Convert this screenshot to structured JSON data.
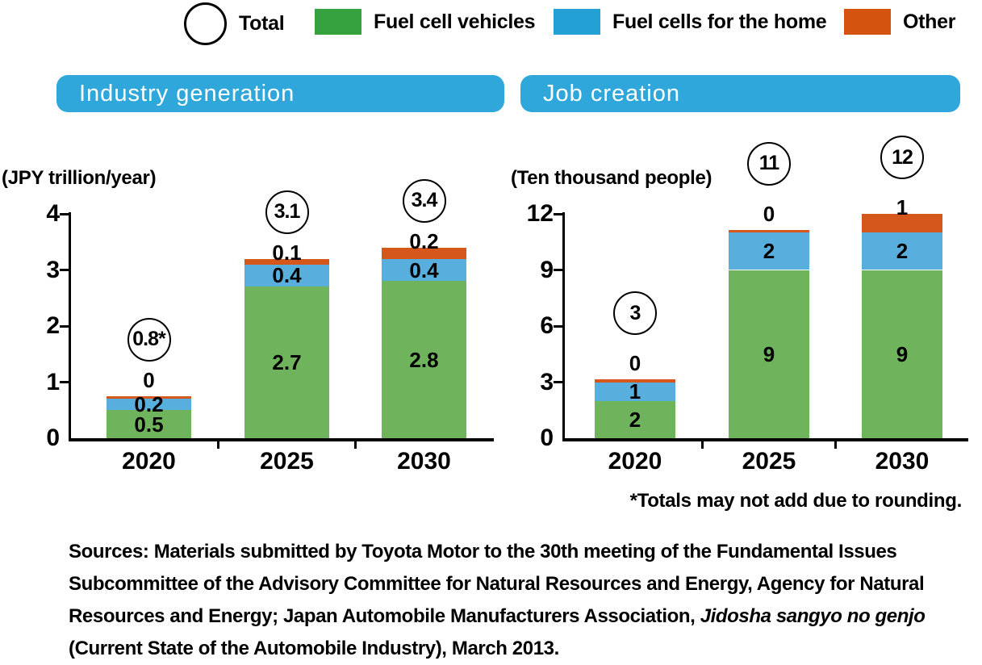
{
  "legend": {
    "total_label": "Total",
    "items": [
      {
        "label": "Fuel cell vehicles",
        "color": "#35A23F"
      },
      {
        "label": "Fuel cells for the home",
        "color": "#23A0D4"
      },
      {
        "label": "Other",
        "color": "#D4540F"
      }
    ]
  },
  "colors": {
    "bar_green": "#6FB45C",
    "bar_blue": "#58AEDC",
    "bar_orange": "#D5571B",
    "header_blue": "#2FA7DA",
    "axis_black": "#000000"
  },
  "chart_data": [
    {
      "type": "bar",
      "stacked": true,
      "title": "Industry generation",
      "unit_label": "(JPY trillion/year)",
      "categories": [
        "2020",
        "2025",
        "2030"
      ],
      "series": [
        {
          "name": "Fuel cell vehicles",
          "values": [
            0.5,
            2.7,
            2.8
          ]
        },
        {
          "name": "Fuel cells for the home",
          "values": [
            0.2,
            0.4,
            0.4
          ]
        },
        {
          "name": "Other",
          "values": [
            0,
            0.1,
            0.2
          ]
        }
      ],
      "totals": [
        "0.8*",
        "3.1",
        "3.4"
      ],
      "ylim": [
        0,
        4
      ],
      "yticks": [
        0,
        1,
        2,
        3,
        4
      ],
      "grid": false,
      "legend_position": "top"
    },
    {
      "type": "bar",
      "stacked": true,
      "title": "Job creation",
      "unit_label": "(Ten thousand people)",
      "categories": [
        "2020",
        "2025",
        "2030"
      ],
      "series": [
        {
          "name": "Fuel cell vehicles",
          "values": [
            2,
            9,
            9
          ]
        },
        {
          "name": "Fuel cells for the home",
          "values": [
            1,
            2,
            2
          ]
        },
        {
          "name": "Other",
          "values": [
            0,
            0,
            1
          ]
        }
      ],
      "totals": [
        "3",
        "11",
        "12"
      ],
      "ylim": [
        0,
        12
      ],
      "yticks": [
        0,
        3,
        6,
        9,
        12
      ],
      "grid": false,
      "legend_position": "top"
    }
  ],
  "footnote": "*Totals may not add due to rounding.",
  "sources": {
    "before_italic": "Sources: Materials submitted by Toyota Motor to the 30th meeting of the Fundamental Issues Subcommittee of the Advisory Committee for Natural Resources and Energy, Agency for Natural Resources and Energy; Japan Automobile Manufacturers Association, ",
    "italic": "Jidosha sangyo no genjo",
    "after_italic": " (Current State of the Automobile Industry), March 2013."
  }
}
